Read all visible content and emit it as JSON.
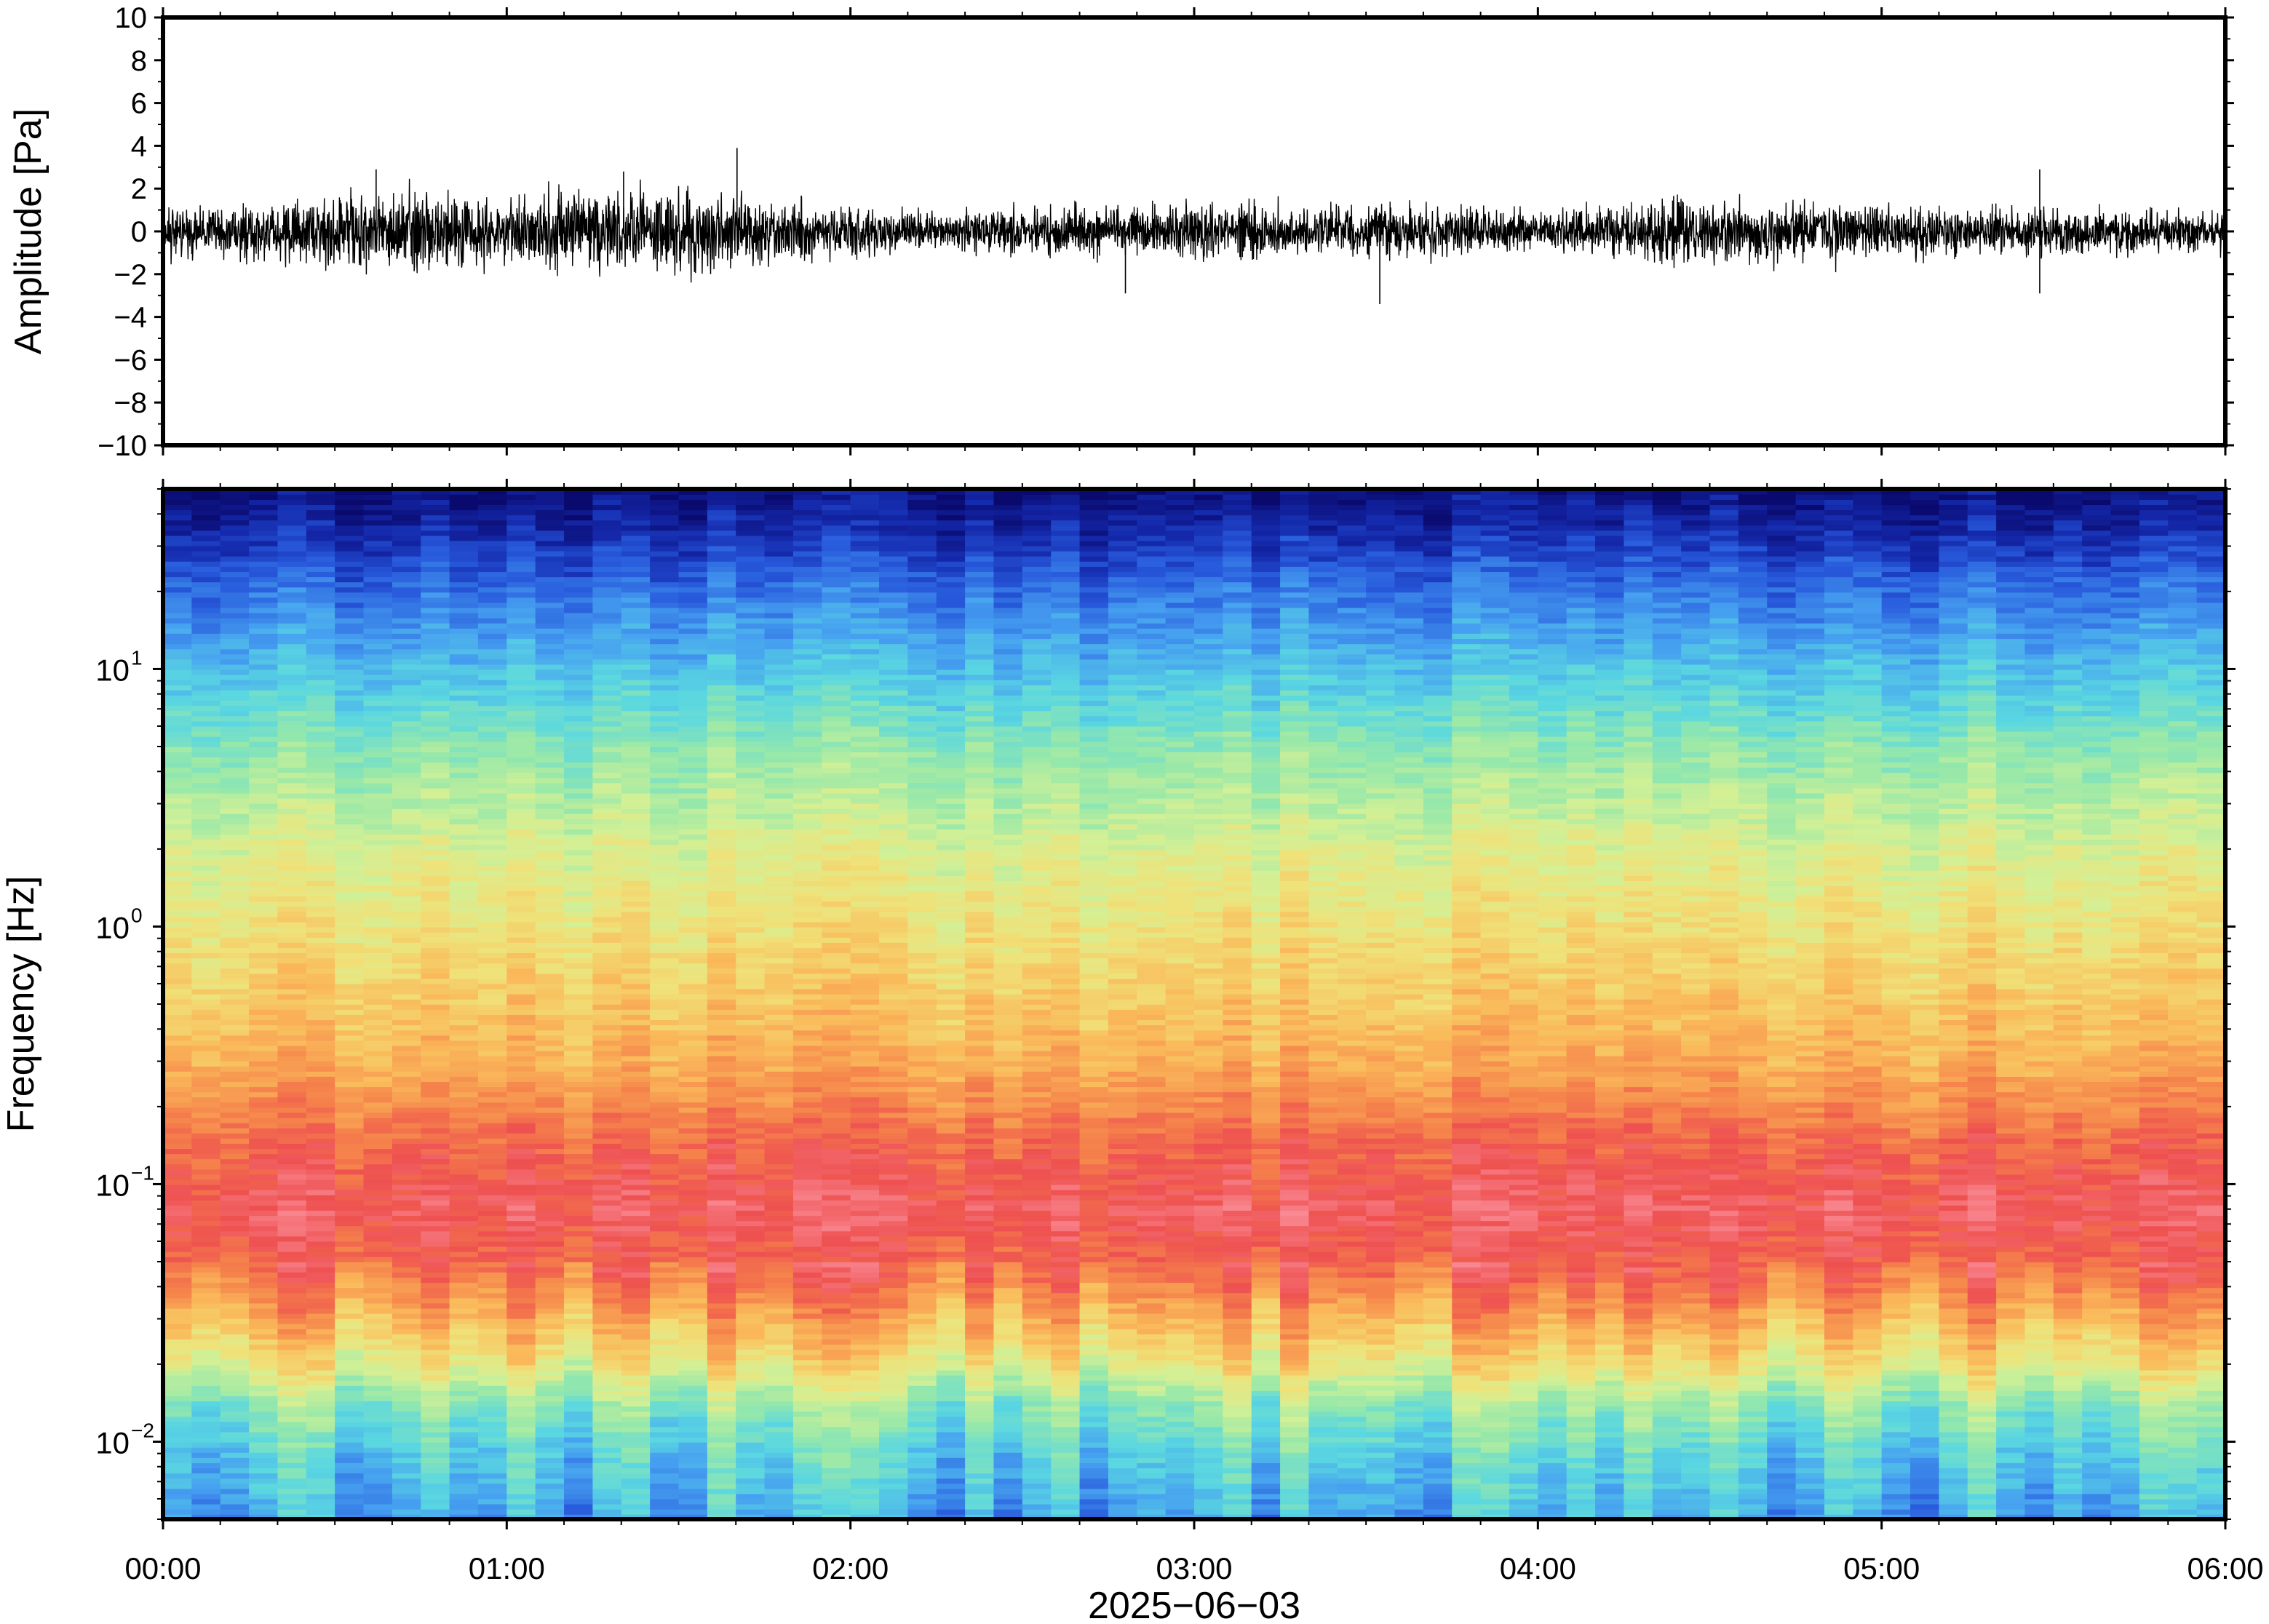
{
  "chart_data": [
    {
      "type": "line",
      "panel": "waveform",
      "ylabel": "Amplitude [Pa]",
      "ylim": [
        -10,
        10
      ],
      "yticks": [
        10,
        8,
        6,
        4,
        2,
        0,
        -2,
        -4,
        -6,
        -8,
        -10
      ],
      "ytick_labels": [
        "10",
        "8",
        "6",
        "4",
        "2",
        "0",
        "−2",
        "−4",
        "−6",
        "−8",
        "−10"
      ],
      "xlim": [
        "00:00",
        "06:00"
      ],
      "series": [
        {
          "x_hours": [
            0.0,
            0.25,
            0.5,
            0.75,
            1.0,
            1.25,
            1.5,
            1.75,
            2.0,
            2.25,
            2.5,
            2.75,
            3.0,
            3.25,
            3.5,
            3.75,
            4.0,
            4.25,
            4.5,
            4.75,
            5.0,
            5.25,
            5.5,
            5.75,
            6.0
          ],
          "envelope_max": [
            1.5,
            1.7,
            2.2,
            2.4,
            2.0,
            2.6,
            2.4,
            2.0,
            1.4,
            1.3,
            1.4,
            1.6,
            1.8,
            1.6,
            1.5,
            1.5,
            1.2,
            1.6,
            2.0,
            1.8,
            1.6,
            1.4,
            1.5,
            1.3,
            1.3
          ],
          "peaks": [
            {
              "x_hours": 0.62,
              "y": 2.9
            },
            {
              "x_hours": 1.34,
              "y": 2.8
            },
            {
              "x_hours": 1.67,
              "y": 3.9
            },
            {
              "x_hours": 2.8,
              "y": -2.9
            },
            {
              "x_hours": 3.54,
              "y": -3.4
            },
            {
              "x_hours": 5.46,
              "y": 2.9
            },
            {
              "x_hours": 5.46,
              "y": -2.9
            }
          ]
        }
      ]
    },
    {
      "type": "heatmap",
      "panel": "spectrogram",
      "ylabel": "Frequency [Hz]",
      "yscale": "log",
      "ylim": [
        0.005,
        50
      ],
      "yticks": [
        0.01,
        0.1,
        1,
        10
      ],
      "ytick_labels": [
        {
          "base": "10",
          "exp": "−2"
        },
        {
          "base": "10",
          "exp": "−1"
        },
        {
          "base": "10",
          "exp": "0"
        },
        {
          "base": "10",
          "exp": "1"
        }
      ],
      "xlim": [
        "00:00",
        "06:00"
      ],
      "x_tick_labels": [
        "00:00",
        "01:00",
        "02:00",
        "03:00",
        "04:00",
        "05:00",
        "06:00"
      ],
      "xlabel": "2025−06−03",
      "colormap": "spectral",
      "time_bins": 72,
      "frequency_bands": [
        {
          "f_hz": 0.005,
          "level": 0.28
        },
        {
          "f_hz": 0.009,
          "level": 0.36
        },
        {
          "f_hz": 0.014,
          "level": 0.46
        },
        {
          "f_hz": 0.02,
          "level": 0.62
        },
        {
          "f_hz": 0.03,
          "level": 0.74
        },
        {
          "f_hz": 0.045,
          "level": 0.86
        },
        {
          "f_hz": 0.08,
          "level": 0.93
        },
        {
          "f_hz": 0.15,
          "level": 0.86
        },
        {
          "f_hz": 0.3,
          "level": 0.74
        },
        {
          "f_hz": 0.7,
          "level": 0.66
        },
        {
          "f_hz": 2,
          "level": 0.57
        },
        {
          "f_hz": 5,
          "level": 0.45
        },
        {
          "f_hz": 10,
          "level": 0.32
        },
        {
          "f_hz": 20,
          "level": 0.2
        },
        {
          "f_hz": 35,
          "level": 0.08
        },
        {
          "f_hz": 50,
          "level": 0.02
        }
      ]
    }
  ]
}
